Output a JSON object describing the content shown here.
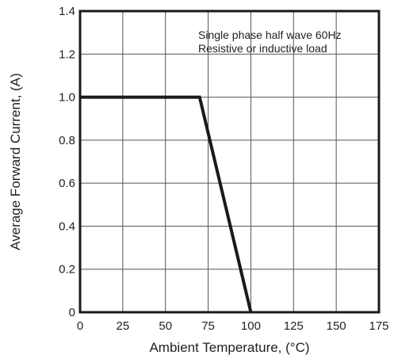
{
  "chart_data": {
    "type": "line",
    "xlabel": "Ambient Temperature, (°C)",
    "ylabel": "Average Forward Current, (A)",
    "xlim": [
      0,
      175
    ],
    "ylim": [
      0,
      1.4
    ],
    "x_ticks": [
      0,
      25,
      50,
      75,
      100,
      125,
      150,
      175
    ],
    "y_ticks": [
      0,
      0.2,
      0.4,
      0.6,
      0.8,
      1.0,
      1.2,
      1.4
    ],
    "x_tick_labels": [
      "0",
      "25",
      "50",
      "75",
      "100",
      "125",
      "150",
      "175"
    ],
    "y_tick_labels": [
      "0",
      "0.2",
      "0.4",
      "0.6",
      "0.8",
      "1.0",
      "1.2",
      "1.4"
    ],
    "grid": true,
    "annotations": [
      "Single phase half wave 60Hz",
      "Resistive or inductive load"
    ],
    "series": [
      {
        "x": [
          0,
          70,
          100
        ],
        "y": [
          1.0,
          1.0,
          0
        ]
      }
    ],
    "colors": {
      "line": "#1a1a1a",
      "grid": "#555555",
      "frame": "#1a1a1a"
    }
  }
}
